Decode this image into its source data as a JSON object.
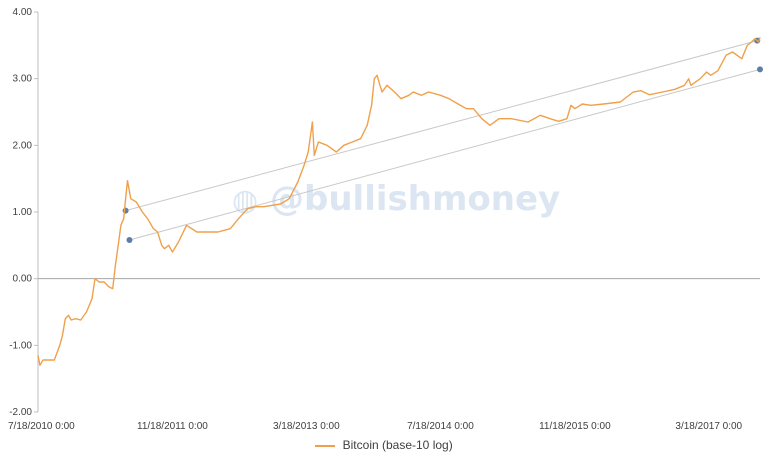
{
  "chart_data": {
    "type": "line",
    "x_type": "date",
    "xlim": [
      "2010-07-18",
      "2017-09-20"
    ],
    "ylim": [
      -2,
      4
    ],
    "y_ticks": [
      4,
      3,
      2,
      1,
      0,
      -1,
      -2
    ],
    "y_tick_labels": [
      "4.00",
      "3.00",
      "2.00",
      "1.00",
      "0.00",
      "-1.00",
      "-2.00"
    ],
    "x_ticks": [
      "2010-07-18",
      "2011-11-18",
      "2013-03-18",
      "2014-07-18",
      "2015-11-18",
      "2017-03-18"
    ],
    "x_tick_labels": [
      "7/18/2010 0:00",
      "11/18/2011 0:00",
      "3/18/2013 0:00",
      "7/18/2014 0:00",
      "11/18/2015 0:00",
      "3/18/2017 0:00"
    ],
    "grid": false,
    "legend_position": "bottom",
    "series": [
      {
        "name": "Bitcoin (base-10 log)",
        "color": "#f0a04b",
        "x": [
          "2010-07-18",
          "2010-07-25",
          "2010-08-05",
          "2010-08-20",
          "2010-09-15",
          "2010-10-05",
          "2010-10-15",
          "2010-10-25",
          "2010-11-06",
          "2010-11-15",
          "2010-12-01",
          "2010-12-20",
          "2011-01-10",
          "2011-01-30",
          "2011-02-10",
          "2011-02-25",
          "2011-03-15",
          "2011-04-01",
          "2011-04-15",
          "2011-04-25",
          "2011-05-05",
          "2011-05-15",
          "2011-05-25",
          "2011-06-01",
          "2011-06-08",
          "2011-06-20",
          "2011-07-10",
          "2011-08-01",
          "2011-08-20",
          "2011-09-10",
          "2011-09-25",
          "2011-10-10",
          "2011-10-20",
          "2011-11-05",
          "2011-11-18",
          "2011-12-10",
          "2012-01-08",
          "2012-02-15",
          "2012-03-15",
          "2012-05-01",
          "2012-06-15",
          "2012-07-15",
          "2012-08-16",
          "2012-09-15",
          "2012-10-15",
          "2012-11-15",
          "2012-12-15",
          "2013-01-15",
          "2013-02-15",
          "2013-03-10",
          "2013-03-25",
          "2013-04-09",
          "2013-04-16",
          "2013-05-01",
          "2013-06-01",
          "2013-07-05",
          "2013-08-01",
          "2013-09-01",
          "2013-10-01",
          "2013-10-25",
          "2013-11-10",
          "2013-11-20",
          "2013-11-30",
          "2013-12-10",
          "2013-12-18",
          "2014-01-05",
          "2014-02-01",
          "2014-02-25",
          "2014-03-25",
          "2014-04-10",
          "2014-05-10",
          "2014-06-05",
          "2014-07-18",
          "2014-08-18",
          "2014-09-20",
          "2014-10-20",
          "2014-11-15",
          "2014-12-15",
          "2015-01-14",
          "2015-02-15",
          "2015-04-01",
          "2015-06-01",
          "2015-07-15",
          "2015-08-20",
          "2015-09-20",
          "2015-10-20",
          "2015-11-04",
          "2015-11-18",
          "2015-12-15",
          "2016-01-15",
          "2016-03-01",
          "2016-05-01",
          "2016-06-17",
          "2016-07-15",
          "2016-08-15",
          "2016-10-01",
          "2016-11-15",
          "2016-12-20",
          "2017-01-04",
          "2017-01-12",
          "2017-02-15",
          "2017-03-10",
          "2017-03-25",
          "2017-04-20",
          "2017-05-20",
          "2017-06-12",
          "2017-07-16",
          "2017-08-05",
          "2017-08-20",
          "2017-09-01",
          "2017-09-15",
          "2017-09-20"
        ],
        "y": [
          -1.15,
          -1.3,
          -1.22,
          -1.22,
          -1.22,
          -1.0,
          -0.85,
          -0.6,
          -0.55,
          -0.62,
          -0.6,
          -0.62,
          -0.5,
          -0.3,
          0.0,
          -0.05,
          -0.05,
          -0.12,
          -0.15,
          0.2,
          0.5,
          0.8,
          0.9,
          1.2,
          1.47,
          1.2,
          1.15,
          1.0,
          0.9,
          0.75,
          0.7,
          0.5,
          0.45,
          0.5,
          0.4,
          0.55,
          0.8,
          0.7,
          0.7,
          0.7,
          0.75,
          0.9,
          1.05,
          1.08,
          1.08,
          1.1,
          1.12,
          1.2,
          1.45,
          1.7,
          1.9,
          2.35,
          1.85,
          2.05,
          2.0,
          1.9,
          2.0,
          2.05,
          2.1,
          2.3,
          2.6,
          3.0,
          3.05,
          2.9,
          2.8,
          2.9,
          2.8,
          2.7,
          2.75,
          2.8,
          2.75,
          2.8,
          2.75,
          2.7,
          2.62,
          2.55,
          2.55,
          2.4,
          2.3,
          2.4,
          2.4,
          2.35,
          2.45,
          2.4,
          2.36,
          2.4,
          2.6,
          2.55,
          2.62,
          2.6,
          2.62,
          2.65,
          2.8,
          2.82,
          2.76,
          2.8,
          2.84,
          2.9,
          3.0,
          2.9,
          3.0,
          3.1,
          3.05,
          3.12,
          3.35,
          3.4,
          3.3,
          3.5,
          3.55,
          3.6,
          3.55,
          3.62
        ]
      }
    ],
    "trend_lines": [
      {
        "x": [
          "2011-06-01",
          "2017-09-10"
        ],
        "y": [
          1.02,
          3.57
        ]
      },
      {
        "x": [
          "2011-06-15",
          "2017-09-20"
        ],
        "y": [
          0.58,
          3.14
        ]
      }
    ],
    "watermark": "@bullishmoney"
  }
}
